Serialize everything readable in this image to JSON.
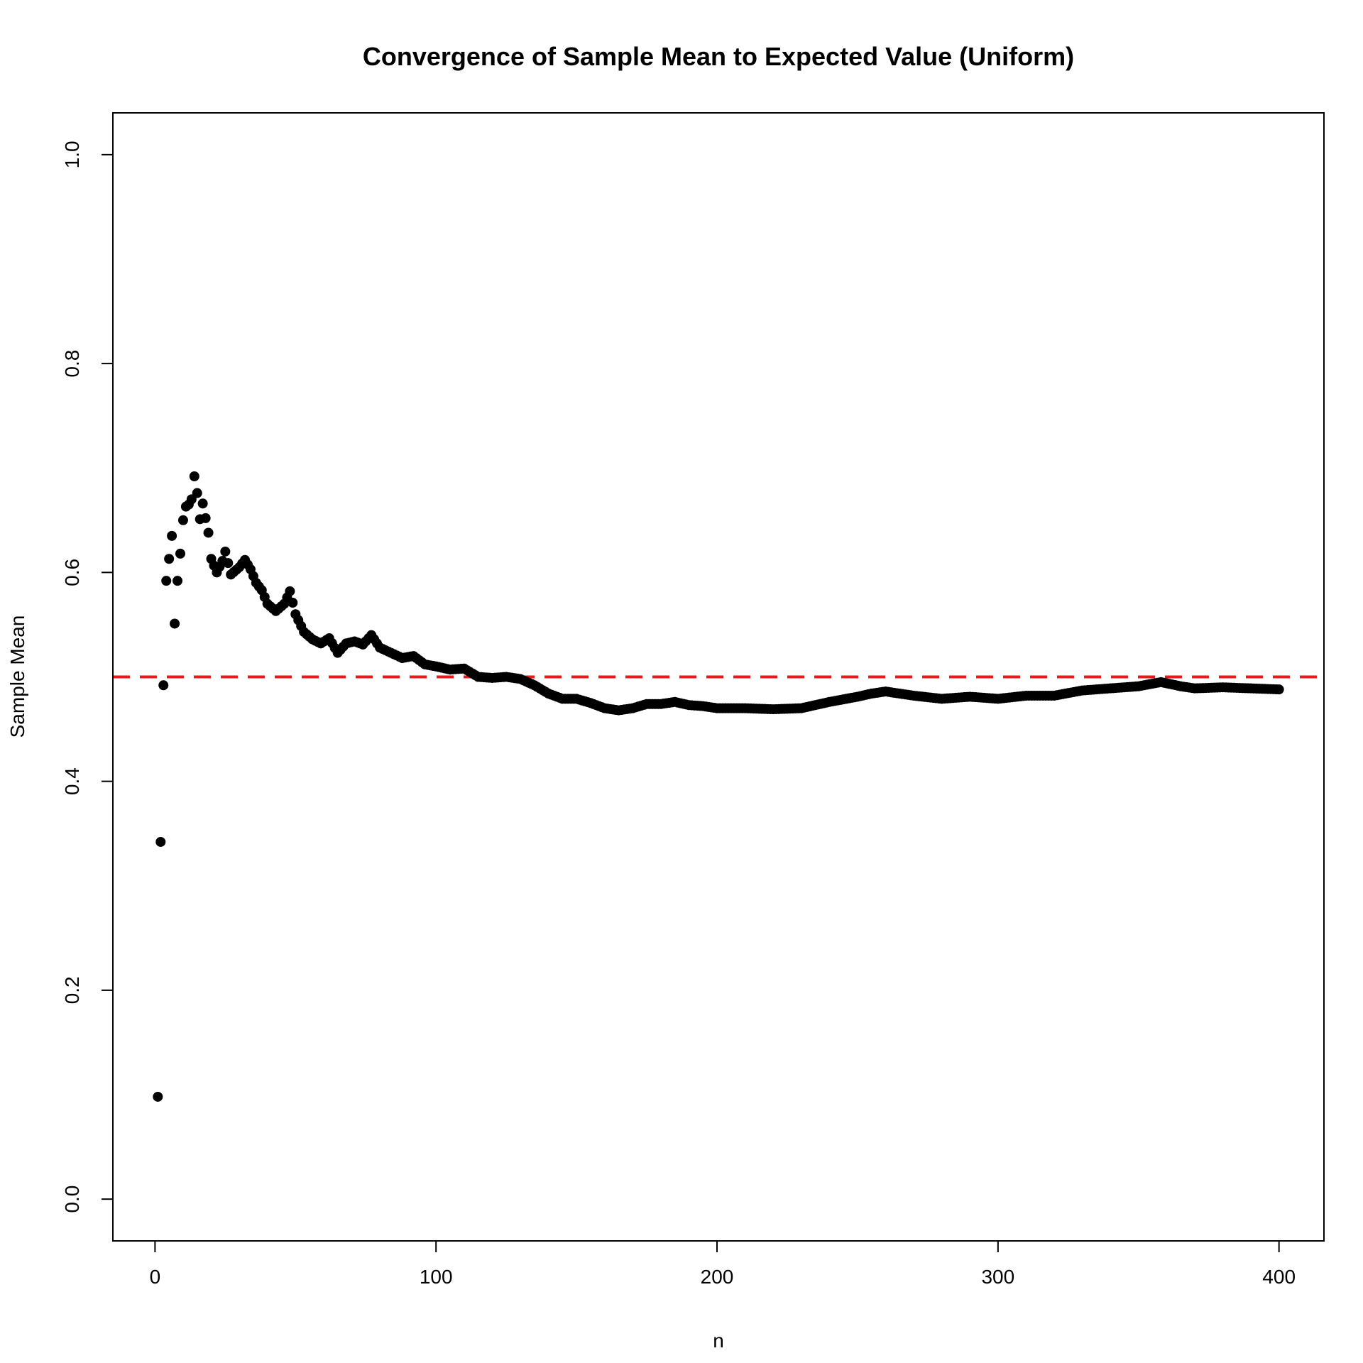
{
  "chart_data": {
    "type": "scatter",
    "title": "Convergence of Sample Mean to Expected Value (Uniform)",
    "xlabel": "n",
    "ylabel": "Sample Mean",
    "xlim": [
      -15,
      416
    ],
    "ylim": [
      -0.04,
      1.04
    ],
    "x_ticks": [
      0,
      100,
      200,
      300,
      400
    ],
    "x_tick_labels": [
      "0",
      "100",
      "200",
      "300",
      "400"
    ],
    "y_ticks": [
      0.0,
      0.2,
      0.4,
      0.6,
      0.8,
      1.0
    ],
    "y_tick_labels": [
      "0.0",
      "0.2",
      "0.4",
      "0.6",
      "0.8",
      "1.0"
    ],
    "grid": false,
    "reference_line": {
      "y": 0.5,
      "style": "dashed",
      "color": "#e41a1c"
    },
    "point_color": "#000000",
    "series": [
      {
        "n_points": 400,
        "anchors_x": [
          1,
          2,
          3,
          4,
          5,
          6,
          7,
          8,
          9,
          10,
          11,
          12,
          13,
          14,
          15,
          16,
          17,
          18,
          19,
          20,
          22,
          24,
          25,
          27,
          30,
          32,
          34,
          36,
          38,
          40,
          43,
          46,
          48,
          50,
          53,
          56,
          59,
          62,
          65,
          68,
          71,
          74,
          77,
          80,
          84,
          88,
          92,
          96,
          100,
          105,
          110,
          115,
          120,
          125,
          130,
          135,
          140,
          145,
          150,
          155,
          160,
          165,
          170,
          175,
          180,
          185,
          190,
          195,
          200,
          210,
          220,
          230,
          240,
          250,
          255,
          260,
          270,
          280,
          290,
          300,
          310,
          320,
          330,
          340,
          350,
          358,
          365,
          370,
          380,
          390,
          400
        ],
        "anchors_y": [
          0.098,
          0.342,
          0.492,
          0.592,
          0.613,
          0.635,
          0.551,
          0.592,
          0.618,
          0.65,
          0.663,
          0.665,
          0.67,
          0.692,
          0.676,
          0.651,
          0.666,
          0.652,
          0.638,
          0.613,
          0.6,
          0.611,
          0.62,
          0.598,
          0.605,
          0.612,
          0.603,
          0.59,
          0.583,
          0.57,
          0.563,
          0.57,
          0.582,
          0.56,
          0.543,
          0.536,
          0.532,
          0.537,
          0.523,
          0.532,
          0.534,
          0.531,
          0.54,
          0.528,
          0.523,
          0.518,
          0.52,
          0.512,
          0.51,
          0.507,
          0.508,
          0.5,
          0.499,
          0.5,
          0.498,
          0.492,
          0.484,
          0.479,
          0.479,
          0.475,
          0.47,
          0.468,
          0.47,
          0.474,
          0.474,
          0.476,
          0.473,
          0.472,
          0.47,
          0.47,
          0.469,
          0.47,
          0.476,
          0.481,
          0.484,
          0.486,
          0.482,
          0.479,
          0.481,
          0.479,
          0.482,
          0.482,
          0.487,
          0.489,
          0.491,
          0.495,
          0.491,
          0.489,
          0.49,
          0.489,
          0.488
        ]
      }
    ]
  }
}
